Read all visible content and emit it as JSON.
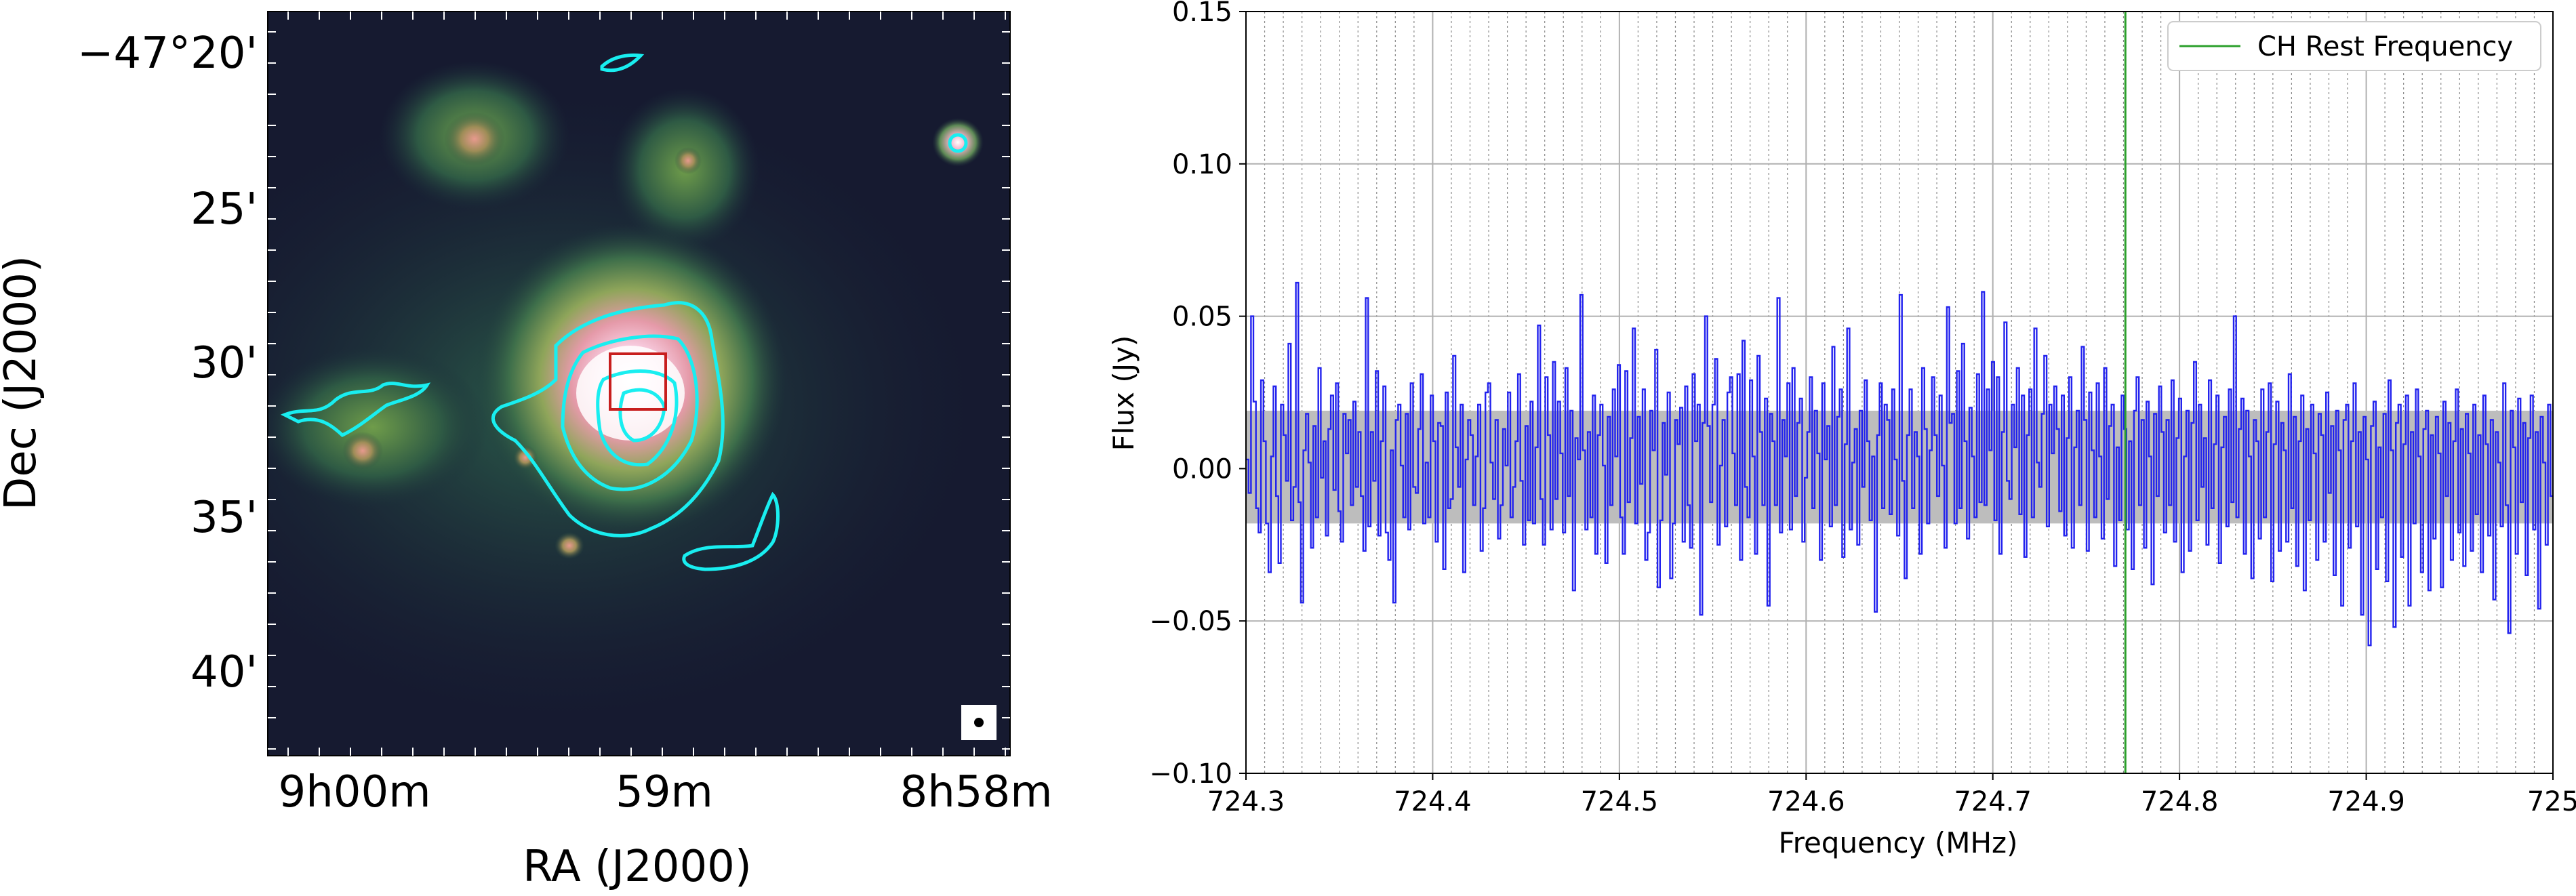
{
  "colors": {
    "spectrum_line": "#2222ee",
    "rest_line": "#2ca02c",
    "noise_band": "#bdbdbd",
    "contour": "#19eef0",
    "box": "#c81e1e",
    "image_base": "#161a30"
  },
  "chart_data": [
    {
      "type": "heatmap",
      "description_kind": "sky image with contours",
      "xlabel": "RA (J2000)",
      "ylabel": "Dec (J2000)",
      "x_tick_labels": [
        "9h00m",
        "59m",
        "8h58m"
      ],
      "y_tick_labels": [
        "−47°20'",
        "25'",
        "30'",
        "35'",
        "40'"
      ],
      "colormap": "cubehelix-like (dark blue → green → pink → white)",
      "contour_color": "cyan",
      "marker_box_color": "red",
      "beam_marker": "white square with black dot (bottom-right)"
    },
    {
      "type": "line",
      "drawstyle": "steps",
      "xlabel": "Frequency (MHz)",
      "ylabel": "Flux (Jy)",
      "xlim": [
        724.3,
        725.0
      ],
      "ylim": [
        -0.1,
        0.15
      ],
      "x_ticks": [
        724.3,
        724.4,
        724.5,
        724.6,
        724.7,
        724.8,
        724.9,
        725.0
      ],
      "x_tick_labels": [
        "724.3",
        "724.4",
        "724.5",
        "724.6",
        "724.7",
        "724.8",
        "724.9",
        "725"
      ],
      "y_ticks": [
        -0.1,
        -0.05,
        0.0,
        0.05,
        0.1,
        0.15
      ],
      "y_tick_labels": [
        "−0.10",
        "−0.05",
        "0.00",
        "0.05",
        "0.10",
        "0.15"
      ],
      "grid": true,
      "legend": {
        "placement": "top-right",
        "entries": [
          "CH Rest Frequency"
        ]
      },
      "rest_frequency": 724.771,
      "noise_band": [
        -0.018,
        0.019
      ],
      "channel_start": 724.3,
      "channel_width": 0.002,
      "values": [
        0.003,
        -0.008,
        0.05,
        0.022,
        -0.013,
        -0.021,
        0.029,
        0.009,
        -0.018,
        -0.034,
        0.004,
        0.027,
        -0.009,
        -0.031,
        0.021,
        0.011,
        -0.004,
        0.041,
        -0.017,
        -0.006,
        0.061,
        -0.011,
        -0.044,
        0.006,
        0.018,
        0.002,
        -0.026,
        0.014,
        -0.016,
        0.033,
        -0.003,
        0.009,
        -0.022,
        0.013,
        0.024,
        -0.007,
        0.028,
        -0.014,
        -0.024,
        0.018,
        0.005,
        0.016,
        -0.012,
        0.022,
        -0.006,
        0.012,
        -0.009,
        -0.027,
        0.056,
        -0.019,
        0.012,
        -0.004,
        0.032,
        -0.022,
        0.009,
        0.027,
        -0.021,
        -0.03,
        0.006,
        -0.044,
        0.016,
        0.021,
        0.001,
        -0.016,
        0.018,
        -0.02,
        0.028,
        -0.006,
        -0.008,
        0.013,
        0.031,
        -0.018,
        0.002,
        -0.016,
        0.024,
        0.009,
        -0.024,
        0.015,
        0.014,
        -0.033,
        0.025,
        -0.013,
        -0.01,
        0.037,
        0.007,
        -0.006,
        0.021,
        -0.034,
        0.003,
        0.016,
        0.011,
        -0.012,
        0.004,
        0.021,
        -0.027,
        -0.013,
        0.025,
        0.028,
        0.002,
        -0.01,
        0.016,
        -0.023,
        -0.012,
        0.013,
        0.001,
        0.025,
        -0.016,
        -0.006,
        0.009,
        0.031,
        -0.004,
        -0.025,
        0.014,
        -0.017,
        0.022,
        -0.018,
        0.007,
        0.047,
        -0.01,
        -0.025,
        0.03,
        0.011,
        -0.02,
        0.035,
        -0.01,
        0.022,
        0.005,
        -0.021,
        0.033,
        -0.009,
        0.019,
        -0.04,
        0.01,
        0.003,
        0.057,
        0.006,
        -0.02,
        0.012,
        -0.016,
        0.024,
        -0.028,
        0.011,
        0.021,
        0.001,
        -0.031,
        0.017,
        -0.012,
        0.026,
        0.004,
        0.034,
        -0.016,
        -0.028,
        0.032,
        -0.011,
        0.01,
        0.046,
        -0.018,
        0.017,
        -0.005,
        0.026,
        -0.03,
        -0.021,
        0.019,
        0.006,
        0.039,
        -0.039,
        -0.017,
        0.015,
        -0.002,
        0.025,
        -0.036,
        -0.018,
        0.016,
        0.008,
        0.02,
        -0.024,
        0.027,
        -0.012,
        -0.026,
        0.031,
        0.009,
        0.021,
        -0.048,
        0.015,
        0.05,
        0.014,
        -0.011,
        0.021,
        0.036,
        -0.025,
        0.001,
        0.016,
        -0.019,
        0.025,
        0.03,
        0.005,
        -0.012,
        0.031,
        -0.03,
        0.042,
        -0.006,
        -0.016,
        0.029,
        0.004,
        -0.028,
        0.037,
        0.012,
        -0.012,
        0.023,
        -0.045,
        0.018,
        0.009,
        -0.012,
        0.056,
        -0.021,
        0.016,
        0.004,
        0.028,
        -0.02,
        0.033,
        -0.009,
        0.015,
        0.023,
        -0.024,
        -0.003,
        0.012,
        0.03,
        -0.013,
        0.019,
        0.005,
        -0.03,
        0.028,
        0.003,
        0.014,
        -0.019,
        0.04,
        -0.012,
        0.017,
        0.026,
        -0.029,
        0.008,
        0.046,
        -0.02,
        0.002,
        0.013,
        -0.025,
        0.019,
        -0.006,
        0.029,
        0.009,
        -0.017,
        0.004,
        -0.047,
        0.011,
        0.028,
        -0.013,
        0.021,
        0.016,
        -0.015,
        0.026,
        0.003,
        -0.022,
        0.057,
        -0.004,
        -0.036,
        0.011,
        0.026,
        -0.013,
        0.012,
        0.004,
        -0.028,
        0.033,
        0.013,
        -0.018,
        0.006,
        0.03,
        0.011,
        -0.009,
        0.024,
        0.001,
        -0.026,
        0.053,
        0.015,
        0.018,
        -0.018,
        0.032,
        -0.013,
        0.041,
        0.009,
        -0.023,
        0.02,
        0.004,
        -0.016,
        0.031,
        -0.011,
        0.058,
        -0.012,
        0.026,
        0.006,
        0.035,
        -0.017,
        0.03,
        -0.028,
        0.012,
        0.048,
        -0.004,
        -0.01,
        0.021,
        0.007,
        0.033,
        -0.015,
        0.024,
        -0.029,
        0.011,
        0.026,
        -0.016,
        0.046,
        0.002,
        -0.006,
        0.018,
        0.037,
        -0.019,
        0.021,
        0.005,
        0.027,
        0.013,
        -0.014,
        0.024,
        -0.022,
        0.01,
        0.03,
        -0.026,
        0.007,
        0.019,
        -0.012,
        0.04,
        0.016,
        -0.027,
        0.025,
        0.006,
        -0.016,
        0.028,
        0.004,
        -0.023,
        0.033,
        -0.01,
        0.014,
        0.021,
        -0.032,
        0.007,
        -0.017,
        0.024,
        0.013,
        -0.02,
        0.009,
        -0.033,
        0.019,
        0.03,
        -0.012,
        0.016,
        -0.026,
        0.022,
        0.004,
        -0.038,
        0.018,
        -0.009,
        0.027,
        0.012,
        -0.021,
        0.016,
        -0.012,
        0.029,
        -0.024,
        0.01,
        0.023,
        -0.034,
        0.004,
        0.019,
        -0.027,
        0.015,
        0.035,
        -0.017,
        0.021,
        -0.006,
        0.01,
        -0.025,
        0.029,
        -0.013,
        0.008,
        0.024,
        -0.031,
        0.007,
        0.017,
        -0.019,
        0.026,
        -0.011,
        0.05,
        -0.016,
        0.013,
        0.023,
        -0.028,
        0.019,
        0.004,
        -0.036,
        0.016,
        0.009,
        -0.023,
        0.026,
        -0.016,
        0.012,
        0.028,
        -0.037,
        0.008,
        0.022,
        -0.027,
        0.015,
        0.006,
        -0.024,
        0.031,
        -0.013,
        0.017,
        -0.032,
        0.009,
        0.024,
        -0.04,
        0.013,
        -0.017,
        0.021,
        0.005,
        -0.03,
        0.018,
        0.011,
        -0.024,
        0.025,
        -0.008,
        0.014,
        -0.035,
        0.019,
        0.006,
        -0.045,
        0.016,
        0.021,
        -0.026,
        0.009,
        0.028,
        -0.019,
        0.012,
        -0.048,
        0.017,
        0.003,
        -0.058,
        0.014,
        0.022,
        -0.033,
        0.007,
        -0.016,
        0.018,
        -0.037,
        0.029,
        0.006,
        -0.052,
        0.015,
        0.021,
        -0.029,
        0.008,
        0.024,
        -0.045,
        0.012,
        -0.018,
        0.026,
        0.004,
        -0.034,
        0.013,
        0.019,
        -0.04,
        0.011,
        -0.023,
        0.017,
        0.005,
        -0.039,
        0.022,
        -0.009,
        0.015,
        -0.03,
        0.009,
        0.026,
        -0.021,
        0.013,
        -0.032,
        0.018,
        0.005,
        -0.027,
        0.021,
        -0.015,
        0.011,
        -0.034,
        0.024,
        0.008,
        -0.022,
        0.016,
        -0.043,
        0.012,
        0.002,
        -0.019,
        0.028,
        -0.012,
        -0.054,
        0.019,
        0.007,
        -0.028,
        0.023,
        -0.011,
        0.015,
        -0.035,
        0.01,
        0.024,
        -0.02,
        0.012,
        -0.046,
        0.017,
        0.002,
        -0.025,
        0.021,
        -0.009
      ]
    }
  ]
}
